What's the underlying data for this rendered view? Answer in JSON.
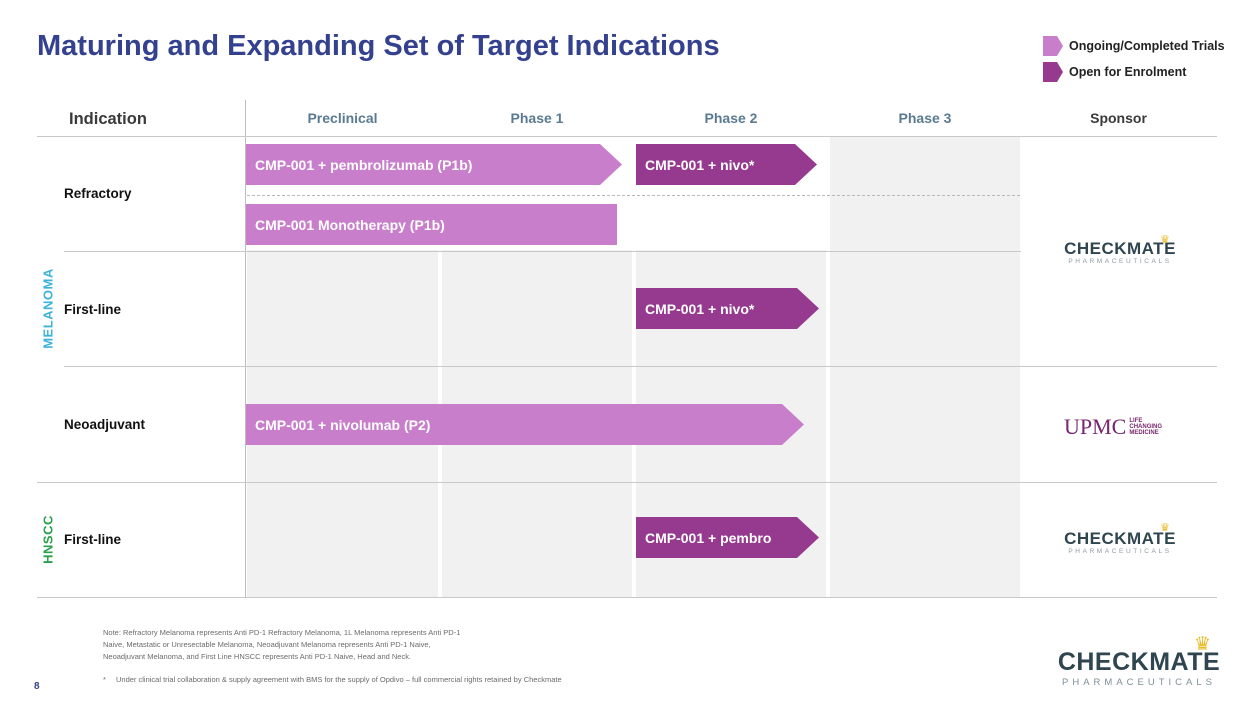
{
  "title": "Maturing and Expanding Set of Target Indications",
  "legend": {
    "ongoing": {
      "label": "Ongoing/Completed Trials",
      "color": "#c97ecb"
    },
    "open": {
      "label": "Open for Enrolment",
      "color": "#953a8f"
    }
  },
  "headers": {
    "indication": "Indication",
    "preclinical": "Preclinical",
    "phase1": "Phase 1",
    "phase2": "Phase 2",
    "phase3": "Phase 3",
    "sponsor": "Sponsor"
  },
  "groups": {
    "melanoma": {
      "label": "MELANOMA",
      "color": "#3bb3d9"
    },
    "hnscc": {
      "label": "HNSCC",
      "color": "#2aa049"
    }
  },
  "rows": {
    "refractory": "Refractory",
    "melanoma_first_line": "First-line",
    "neoadjuvant": "Neoadjuvant",
    "hnscc_first_line": "First-line"
  },
  "bars": {
    "refractory_pembro": {
      "label": "CMP-001 + pembrolizumab (P1b)",
      "status": "Ongoing/Completed"
    },
    "refractory_nivo": {
      "label": "CMP-001 + nivo*",
      "status": "Open for Enrolment"
    },
    "refractory_mono": {
      "label": "CMP-001 Monotherapy (P1b)",
      "status": "Ongoing/Completed"
    },
    "first_line_nivo": {
      "label": "CMP-001 + nivo*",
      "status": "Open for Enrolment"
    },
    "neoadjuvant_nivolumab": {
      "label": "CMP-001 + nivolumab (P2)",
      "status": "Ongoing/Completed"
    },
    "hnscc_pembro": {
      "label": "CMP-001 + pembro",
      "status": "Open for Enrolment"
    }
  },
  "sponsors": {
    "checkmate": {
      "name": "CHECKMATE",
      "sub": "PHARMACEUTICALS"
    },
    "upmc": {
      "name": "UPMC",
      "tag1": "LIFE",
      "tag2": "CHANGING",
      "tag3": "MEDICINE"
    }
  },
  "footer": {
    "note1": "Note: Refractory Melanoma represents Anti PD-1 Refractory Melanoma, 1L Melanoma represents Anti PD-1",
    "note2": "Naive, Metastatic or Unresectable Melanoma, Neoadjuvant Melanoma represents Anti PD-1 Naive,",
    "note3": "Neoadjuvant Melanoma, and First Line HNSCC  represents Anti PD-1 Naive, Head and Neck.",
    "asterisk_mark": "*",
    "asterisk_note": "Under clinical trial collaboration & supply agreement with BMS for the supply of Opdivo – full commercial rights retained by Checkmate",
    "page_number": "8"
  },
  "brand": {
    "name": "CHECKMATE",
    "sub": "PHARMACEUTICALS",
    "crown_icon": "crown-icon"
  }
}
